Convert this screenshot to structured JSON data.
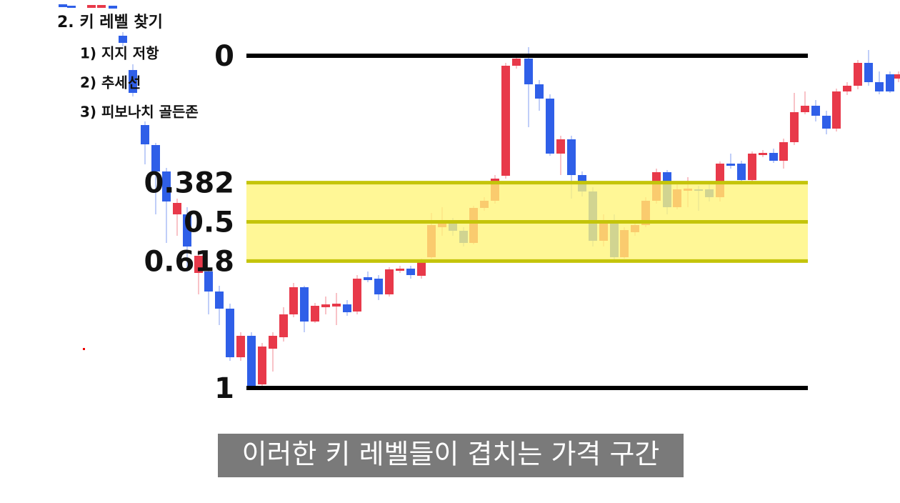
{
  "menu": {
    "title": "2. 키 레벨 찾기",
    "items": [
      "1) 지지 저항",
      "2) 추세선",
      "3) 피보나치 골든존"
    ]
  },
  "fib_levels": [
    0,
    0.382,
    0.5,
    0.618,
    1
  ],
  "caption": "이러한 키 레벨들이 겹치는 가격 구간"
}
